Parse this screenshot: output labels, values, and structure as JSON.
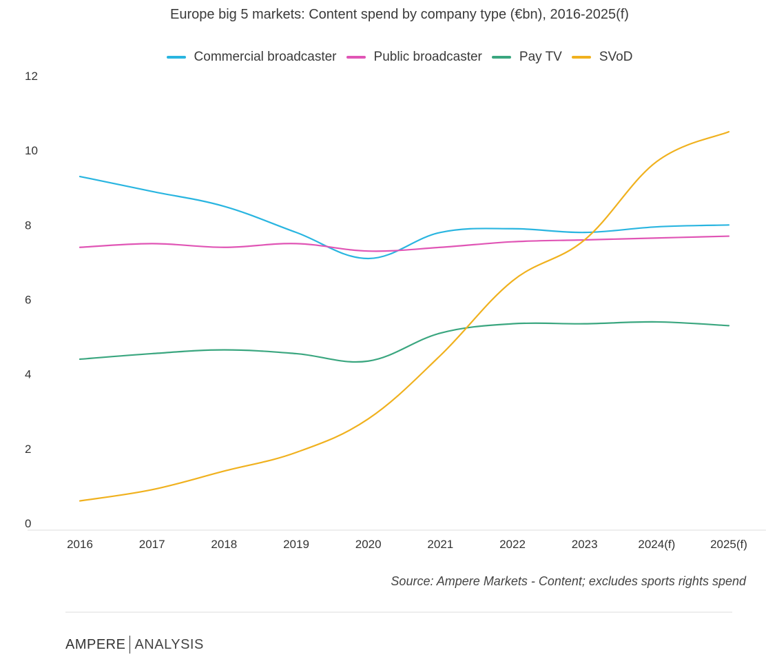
{
  "chart_data": {
    "type": "line",
    "title": "Europe big 5 markets: Content spend by company type (€bn), 2016-2025(f)",
    "xlabel": "",
    "ylabel": "",
    "categories": [
      "2016",
      "2017",
      "2018",
      "2019",
      "2020",
      "2021",
      "2022",
      "2023",
      "2024(f)",
      "2025(f)"
    ],
    "y_ticks": [
      "0",
      "2",
      "4",
      "6",
      "8",
      "10",
      "12"
    ],
    "ylim": [
      0,
      12
    ],
    "grid": false,
    "legend_position": "top",
    "series": [
      {
        "name": "Commercial broadcaster",
        "color": "#29b5e0",
        "values": [
          9.3,
          8.9,
          8.5,
          7.8,
          7.1,
          7.8,
          7.9,
          7.8,
          7.95,
          8.0
        ]
      },
      {
        "name": "Public broadcaster",
        "color": "#e055b5",
        "values": [
          7.4,
          7.5,
          7.4,
          7.5,
          7.3,
          7.4,
          7.55,
          7.6,
          7.65,
          7.7
        ]
      },
      {
        "name": "Pay TV",
        "color": "#3aa67f",
        "values": [
          4.4,
          4.55,
          4.65,
          4.55,
          4.35,
          5.1,
          5.35,
          5.35,
          5.4,
          5.3
        ]
      },
      {
        "name": "SVoD",
        "color": "#f0b11e",
        "values": [
          0.6,
          0.9,
          1.4,
          1.9,
          2.8,
          4.5,
          6.5,
          7.6,
          9.7,
          10.5
        ]
      }
    ]
  },
  "source": "Source: Ampere Markets - Content; excludes sports rights spend",
  "logo": {
    "part1": "AMPERE",
    "part2": "ANALYSIS"
  }
}
